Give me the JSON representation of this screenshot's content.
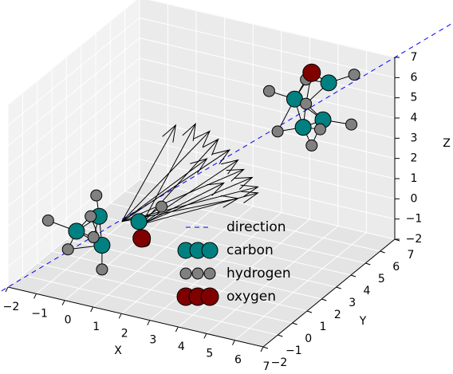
{
  "chart_data": {
    "type": "scatter3d",
    "xlabel": "X",
    "ylabel": "Y",
    "zlabel": "Z",
    "xlim": [
      -2,
      7
    ],
    "ylim": [
      -2,
      7
    ],
    "zlim": [
      -2,
      7
    ],
    "xticks": [
      {
        "value": -2,
        "label": "−2"
      },
      {
        "value": -1,
        "label": "−1"
      },
      0,
      1,
      2,
      3,
      4,
      5,
      6,
      7
    ],
    "yticks": [
      {
        "value": -2,
        "label": "−2"
      },
      {
        "value": -1,
        "label": "−1"
      },
      0,
      1,
      2,
      3,
      4,
      5,
      6,
      7
    ],
    "zticks": [
      {
        "value": -2,
        "label": "−2"
      },
      {
        "value": -1,
        "label": "−1"
      },
      0,
      1,
      2,
      3,
      4,
      5,
      6,
      7
    ],
    "grid": true,
    "series": [
      {
        "name": "direction",
        "color": "#0000ff",
        "x": [
          -2.5,
          8.5
        ],
        "y": [
          -2.5,
          8.5
        ],
        "z": [
          -2.5,
          8.5
        ]
      },
      {
        "name": "carbon",
        "color": "#008080",
        "x": [
          -0.1,
          0.8,
          0.7,
          2.1,
          4.5,
          5.7,
          4.8,
          5.5
        ],
        "y": [
          -1,
          -1,
          -1,
          -1,
          5,
          5,
          5,
          5
        ],
        "z": [
          0.8,
          0.4,
          1.8,
          2.0,
          5.3,
          6.5,
          4.0,
          4.6
        ]
      },
      {
        "name": "hydrogen",
        "color": "#808080",
        "x": [
          -1.1,
          -0.4,
          0.6,
          0.4,
          0.5,
          0.8,
          2.3,
          2.9,
          3.6,
          4.9,
          4.9,
          6.6,
          3.9,
          5.4,
          6.5,
          5.1
        ],
        "y": [
          -1,
          -1,
          -1,
          -1,
          -1,
          -1,
          -1,
          -1,
          5,
          5,
          5,
          5,
          5,
          5,
          5,
          5
        ],
        "z": [
          1.0,
          -0.2,
          2.8,
          1.7,
          0.7,
          -0.8,
          1.1,
          3.0,
          5.4,
          6.4,
          5.2,
          7.2,
          3.5,
          4.1,
          4.7,
          3.2
        ]
      },
      {
        "name": "oxygen",
        "color": "#800000",
        "x": [
          2.2,
          5.1
        ],
        "y": [
          -1,
          5
        ],
        "z": [
          1.2,
          6.8
        ]
      }
    ],
    "quiver": {
      "color": "#000000",
      "start": [
        [
          1.5,
          -1,
          1.8
        ],
        [
          2.2,
          -1,
          1.9
        ],
        [
          1.5,
          -1,
          1.8
        ],
        [
          2.2,
          -1,
          1.9
        ],
        [
          1.5,
          -1,
          1.8
        ],
        [
          2.2,
          -1,
          1.9
        ],
        [
          1.5,
          -1,
          1.8
        ],
        [
          2.2,
          -1,
          1.9
        ],
        [
          1.5,
          -1,
          1.8
        ],
        [
          2.2,
          -1,
          1.9
        ],
        [
          1.5,
          -1,
          1.8
        ],
        [
          2.2,
          -1,
          1.9
        ],
        [
          1.5,
          -1,
          1.8
        ]
      ],
      "end": [
        [
          3.4,
          -1,
          7.2
        ],
        [
          4.1,
          -1,
          7.5
        ],
        [
          4.6,
          -1,
          7.3
        ],
        [
          4.9,
          -1,
          7.0
        ],
        [
          5.3,
          -1,
          6.6
        ],
        [
          5.6,
          -1,
          6.2
        ],
        [
          5.8,
          -1,
          5.8
        ],
        [
          6.1,
          -1,
          5.5
        ],
        [
          6.3,
          -1,
          5.1
        ],
        [
          6.3,
          -1,
          4.8
        ],
        [
          5.6,
          -1,
          4.3
        ],
        [
          5.1,
          -1,
          4.9
        ],
        [
          4.5,
          -1,
          5.9
        ]
      ]
    }
  }
}
